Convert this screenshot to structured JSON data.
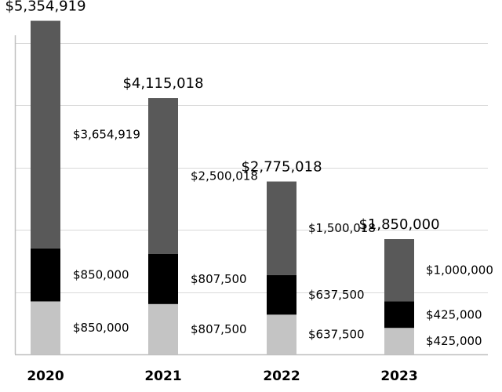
{
  "chart_data": {
    "type": "bar",
    "stacked": true,
    "title": "",
    "xlabel": "",
    "ylabel": "",
    "categories": [
      "2020",
      "2021",
      "2022",
      "2023"
    ],
    "series": [
      {
        "values": [
          850000,
          807500,
          637500,
          425000
        ],
        "color": "#c4c4c4"
      },
      {
        "values": [
          850000,
          807500,
          637500,
          425000
        ],
        "color": "#000000"
      },
      {
        "values": [
          3654919,
          2500018,
          1500018,
          1000000
        ],
        "color": "#595959"
      }
    ],
    "value_labels": [
      [
        "$850,000",
        "$807,500",
        "$637,500",
        "$425,000"
      ],
      [
        "$850,000",
        "$807,500",
        "$637,500",
        "$425,000"
      ],
      [
        "$3,654,919",
        "$2,500,018",
        "$1,500,018",
        "$1,000,000"
      ]
    ],
    "totals": [
      5354919,
      4115018,
      2775018,
      1850000
    ],
    "total_labels": [
      "$5,354,919",
      "$4,115,018",
      "$2,775,018",
      "$1,850,000"
    ],
    "ylim": [
      0,
      5500000
    ],
    "grid": true,
    "legend": "none",
    "colors": {
      "background": "#ffffff",
      "grid": "#d9d9d9",
      "axis": "#bfbfbf"
    }
  }
}
